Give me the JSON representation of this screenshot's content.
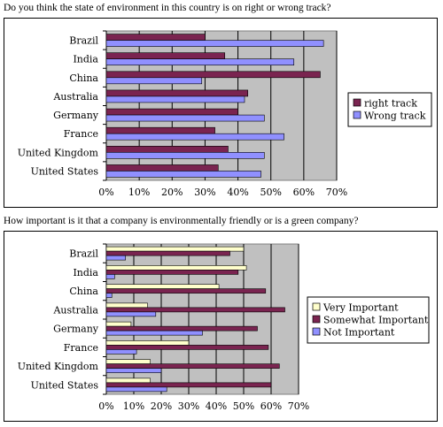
{
  "colors": {
    "plot_bg": "#c0c0c0",
    "grid": "#000000",
    "maroon": "#7a2450",
    "blue": "#9090ff",
    "cream": "#ffffcc"
  },
  "chart_data": [
    {
      "type": "bar",
      "orientation": "horizontal",
      "title": "Do you think the state of environment in this country is on right or wrong track?",
      "categories": [
        "Brazil",
        "India",
        "China",
        "Australia",
        "Germany",
        "France",
        "United Kingdom",
        "United States"
      ],
      "series": [
        {
          "name": "right track",
          "color": "#7a2450",
          "values": [
            30,
            36,
            65,
            43,
            40,
            33,
            37,
            34
          ]
        },
        {
          "name": "Wrong track",
          "color": "#9090ff",
          "values": [
            66,
            57,
            29,
            42,
            48,
            54,
            48,
            47
          ]
        }
      ],
      "xlim": [
        0,
        70
      ],
      "xticks": [
        "0%",
        "10%",
        "20%",
        "30%",
        "40%",
        "50%",
        "60%",
        "70%"
      ],
      "grid": true,
      "legend_position": "right"
    },
    {
      "type": "bar",
      "orientation": "horizontal",
      "title": "How important is it that a company is environmentally friendly or is a green company?",
      "categories": [
        "Brazil",
        "India",
        "China",
        "Australia",
        "Germany",
        "France",
        "United Kingdom",
        "United States"
      ],
      "series": [
        {
          "name": "Very Important",
          "color": "#ffffcc",
          "values": [
            50,
            51,
            41,
            15,
            9,
            30,
            16,
            16
          ]
        },
        {
          "name": "Somewhat Important",
          "color": "#7a2450",
          "values": [
            45,
            48,
            58,
            65,
            55,
            59,
            63,
            60
          ]
        },
        {
          "name": "Not Important",
          "color": "#9090ff",
          "values": [
            7,
            3,
            2,
            18,
            35,
            11,
            20,
            22
          ]
        }
      ],
      "xlim": [
        0,
        70
      ],
      "xticks": [
        "0%",
        "10%",
        "20%",
        "30%",
        "40%",
        "50%",
        "60%",
        "70%"
      ],
      "grid": true,
      "legend_position": "right"
    }
  ]
}
